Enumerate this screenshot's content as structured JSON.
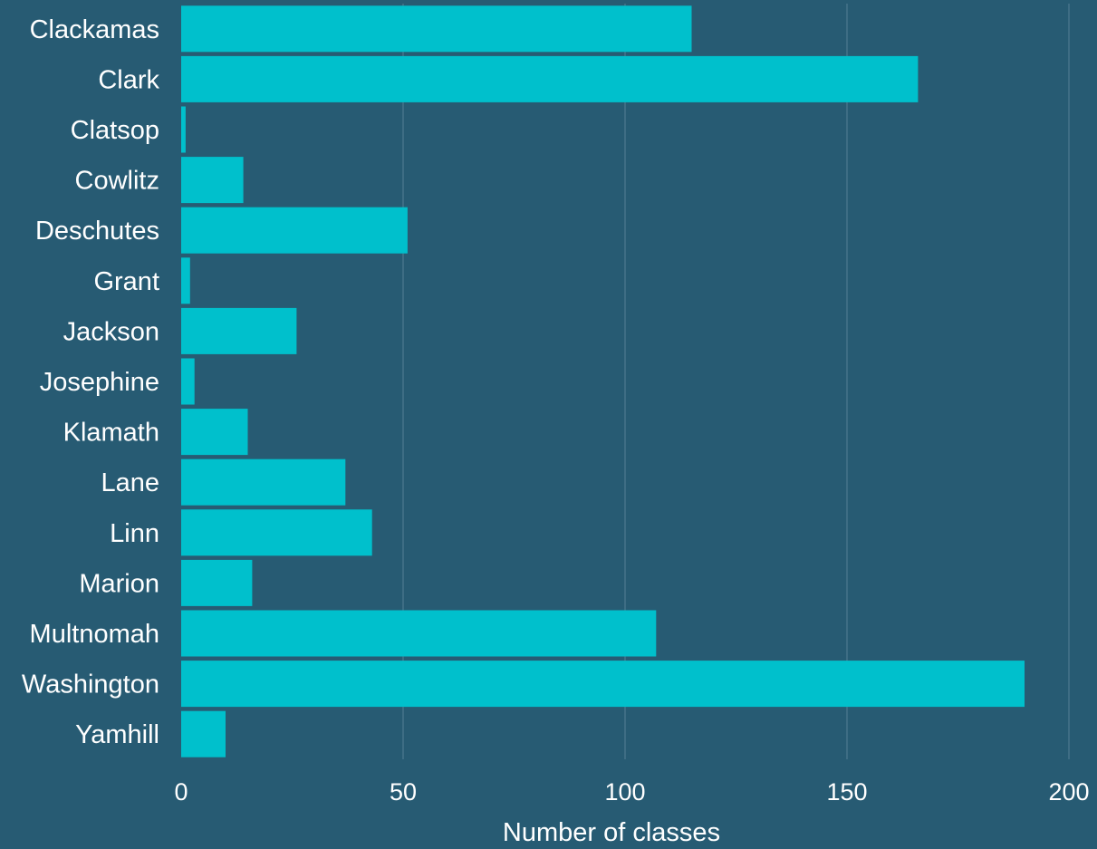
{
  "chart_data": {
    "type": "bar",
    "orientation": "horizontal",
    "categories": [
      "Clackamas",
      "Clark",
      "Clatsop",
      "Cowlitz",
      "Deschutes",
      "Grant",
      "Jackson",
      "Josephine",
      "Klamath",
      "Lane",
      "Linn",
      "Marion",
      "Multnomah",
      "Washington",
      "Yamhill"
    ],
    "values": [
      115,
      166,
      1,
      14,
      51,
      2,
      26,
      3,
      15,
      37,
      43,
      16,
      107,
      190,
      10
    ],
    "xlabel": "Number of classes",
    "xlim": [
      0,
      200
    ],
    "xticks": [
      "0",
      "50",
      "100",
      "150",
      "200"
    ],
    "xtick_values": [
      0,
      50,
      100,
      150,
      200
    ],
    "grid": "vertical",
    "legend": "none"
  },
  "colors": {
    "background": "#275b73",
    "bar": "#00c0cc",
    "grid": "#7e9eaf",
    "text": "#ffffff"
  }
}
